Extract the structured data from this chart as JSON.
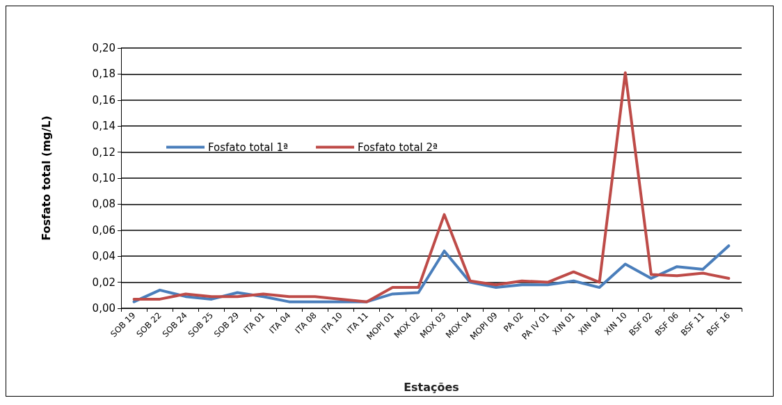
{
  "chart_data": {
    "type": "line",
    "xlabel": "Estações",
    "ylabel": "Fosfato total (mg/L)",
    "categories": [
      "SOB 19",
      "SOB 22",
      "SOB 24",
      "SOB 25",
      "SOB 29",
      "ITA 01",
      "ITA 04",
      "ITA 08",
      "ITA 10",
      "ITA 11",
      "MOPI 01",
      "MOX 02",
      "MOX 03",
      "MOX 04",
      "MOPI 09",
      "PA 02",
      "PA IV 01",
      "XIN 01",
      "XIN 04",
      "XIN 10",
      "BSF 02",
      "BSF 06",
      "BSF 11",
      "BSF 16"
    ],
    "series": [
      {
        "name": "Fosfato total 1ª",
        "color": "#4a7ebb",
        "values": [
          0.005,
          0.014,
          0.009,
          0.007,
          0.012,
          0.009,
          0.005,
          0.005,
          0.005,
          0.005,
          0.011,
          0.012,
          0.044,
          0.02,
          0.016,
          0.018,
          0.018,
          0.021,
          0.016,
          0.034,
          0.023,
          0.032,
          0.03,
          0.048
        ]
      },
      {
        "name": "Fosfato total 2ª",
        "color": "#be4b48",
        "values": [
          0.007,
          0.007,
          0.011,
          0.009,
          0.009,
          0.011,
          0.009,
          0.009,
          0.007,
          0.005,
          0.016,
          0.016,
          0.072,
          0.021,
          0.018,
          0.021,
          0.02,
          0.028,
          0.02,
          0.181,
          0.026,
          0.025,
          0.027,
          0.023
        ]
      }
    ],
    "ylim": [
      0,
      0.2
    ],
    "yticks": [
      {
        "value": 0,
        "label": "0,00"
      },
      {
        "value": 0.02,
        "label": "0,02"
      },
      {
        "value": 0.04,
        "label": "0,04"
      },
      {
        "value": 0.06,
        "label": "0,06"
      },
      {
        "value": 0.08,
        "label": "0,08"
      },
      {
        "value": 0.1,
        "label": "0,10"
      },
      {
        "value": 0.12,
        "label": "0,12"
      },
      {
        "value": 0.14,
        "label": "0,14"
      },
      {
        "value": 0.16,
        "label": "0,16"
      },
      {
        "value": 0.18,
        "label": "0,18"
      },
      {
        "value": 0.2,
        "label": "0,20"
      }
    ],
    "grid": "y",
    "legend": "top left",
    "marker": "none",
    "line_style": "solid"
  }
}
